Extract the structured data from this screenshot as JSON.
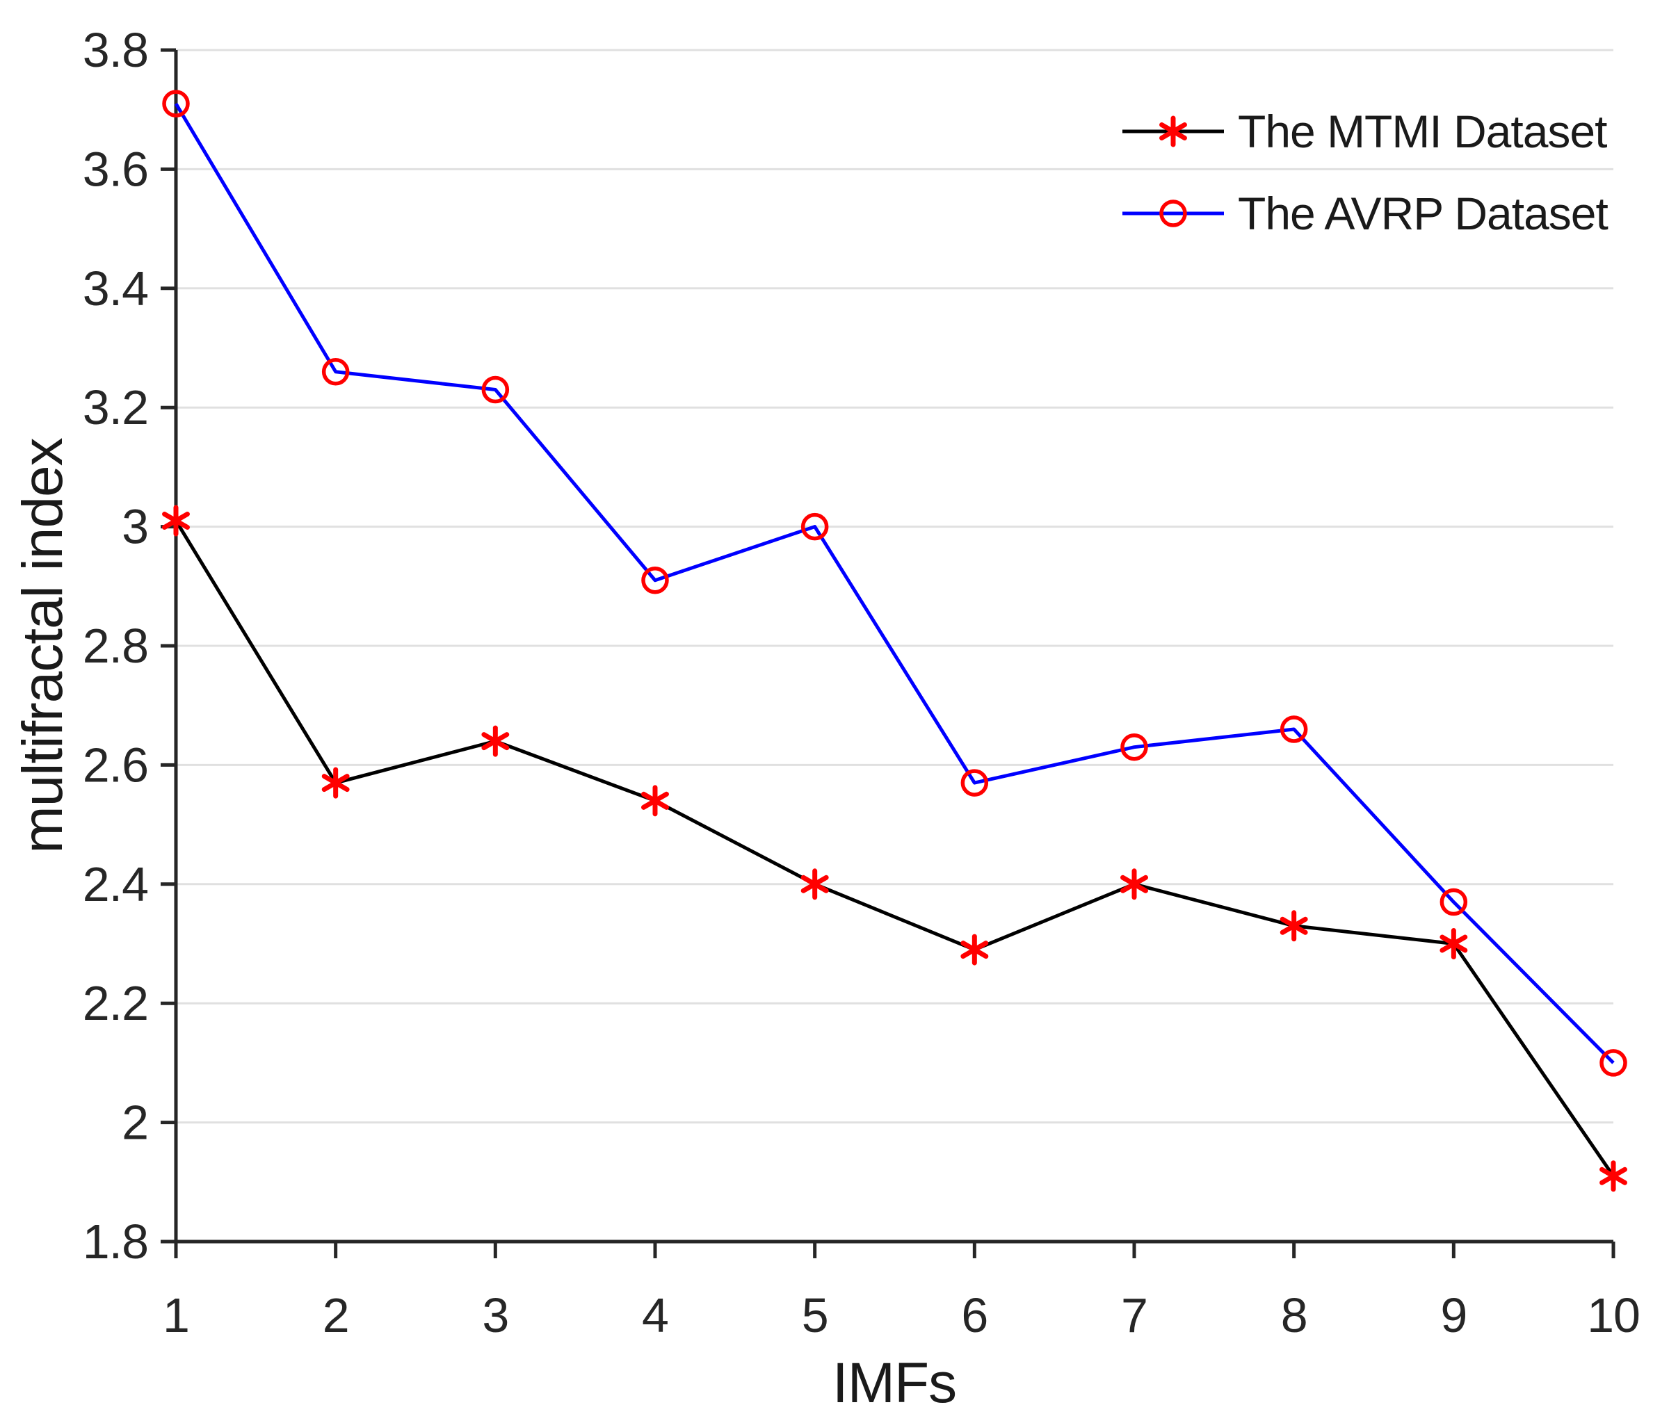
{
  "chart_data": {
    "type": "line",
    "x": [
      1,
      2,
      3,
      4,
      5,
      6,
      7,
      8,
      9,
      10
    ],
    "series": [
      {
        "name": "The MTMI Dataset",
        "values": [
          3.01,
          2.57,
          2.64,
          2.54,
          2.4,
          2.29,
          2.4,
          2.33,
          2.3,
          1.91
        ],
        "line_color": "#000000",
        "marker": "asterisk",
        "marker_color": "#ff0000"
      },
      {
        "name": "The AVRP Dataset",
        "values": [
          3.71,
          3.26,
          3.23,
          2.91,
          3.0,
          2.57,
          2.63,
          2.66,
          2.37,
          2.1
        ],
        "line_color": "#0000ff",
        "marker": "open-circle",
        "marker_color": "#ff0000"
      }
    ],
    "title": "",
    "xlabel": "IMFs",
    "ylabel": "multifractal index",
    "xlim": [
      1,
      10
    ],
    "ylim": [
      1.8,
      3.8
    ],
    "xtick_labels": [
      "1",
      "2",
      "3",
      "4",
      "5",
      "6",
      "7",
      "8",
      "9",
      "10"
    ],
    "ytick_labels": [
      "1.8",
      "2",
      "2.2",
      "2.4",
      "2.6",
      "2.8",
      "3",
      "3.2",
      "3.4",
      "3.6",
      "3.8"
    ],
    "grid": "horizontal-only",
    "legend_position": "top-right",
    "grid_color": "#e0e0e0",
    "axis_color": "#262626",
    "tick_label_color": "#262626"
  }
}
